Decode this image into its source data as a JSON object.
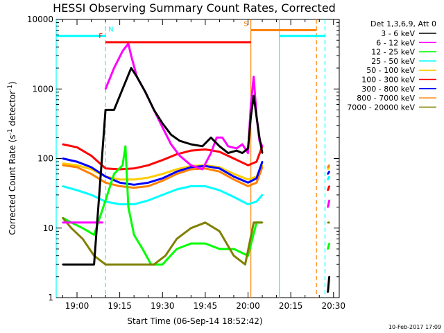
{
  "chart_data": {
    "type": "line",
    "title": "HESSI Observing Summary Count Rates, Corrected",
    "xlabel": "Start Time (06-Sep-14 18:52:42)",
    "ylabel": "Corrected Count Rate (s⁻¹ detector⁻¹)",
    "ylabel_base": "Corrected Count Rate (s",
    "ylabel_exp1": "-1",
    "ylabel_mid": " detector",
    "ylabel_exp2": "-1",
    "ylabel_end": ")",
    "y_scale": "log",
    "ylim": [
      1,
      10000
    ],
    "xlim": [
      "18:52:42",
      "20:32:00"
    ],
    "x_ticks": [
      {
        "t": "19:00",
        "label": "19:00"
      },
      {
        "t": "19:15",
        "label": "19:15"
      },
      {
        "t": "19:30",
        "label": "19:30"
      },
      {
        "t": "19:45",
        "label": "19:45"
      },
      {
        "t": "20:00",
        "label": "20:00"
      },
      {
        "t": "20:15",
        "label": "20:15"
      },
      {
        "t": "20:30",
        "label": "20:30"
      }
    ],
    "y_ticks": [
      {
        "v": 1,
        "label": "1"
      },
      {
        "v": 10,
        "label": "10"
      },
      {
        "v": 100,
        "label": "100"
      },
      {
        "v": 1000,
        "label": "1000"
      },
      {
        "v": 10000,
        "label": "10000"
      }
    ],
    "legend_header": "Det 1,3,6,9, Att 0",
    "legend_position": "right",
    "series": [
      {
        "name": "3 - 6 keV",
        "color": "#000000",
        "segments": [
          {
            "t": [
              "18:55",
              "18:58",
              "19:02",
              "19:06",
              "19:10",
              "19:13",
              "19:16",
              "19:19",
              "19:21",
              "19:24",
              "19:27",
              "19:30",
              "19:33",
              "19:36",
              "19:40",
              "19:44",
              "19:47",
              "19:50",
              "19:53",
              "19:56",
              "19:58",
              "20:00",
              "20:01",
              "20:02",
              "20:03",
              "20:04",
              "20:05"
            ],
            "v": [
              3,
              3,
              3,
              3,
              500,
              500,
              1000,
              2000,
              1500,
              900,
              500,
              320,
              220,
              180,
              160,
              150,
              200,
              150,
              120,
              130,
              120,
              140,
              400,
              800,
              400,
              200,
              120
            ]
          },
          {
            "t": [
              "20:28",
              "20:28.5"
            ],
            "v": [
              1.2,
              2
            ]
          }
        ]
      },
      {
        "name": "6 - 12 keV",
        "color": "#ff00ff",
        "segments": [
          {
            "t": [
              "18:55",
              "18:58",
              "19:02",
              "19:06",
              "19:09"
            ],
            "v": [
              12,
              12,
              12,
              12,
              12
            ]
          },
          {
            "t": [
              "19:10",
              "19:13",
              "19:16",
              "19:18",
              "19:19",
              "19:21",
              "19:24",
              "19:27",
              "19:30",
              "19:33",
              "19:36",
              "19:40",
              "19:44",
              "19:47",
              "19:49",
              "19:51",
              "19:53",
              "19:56",
              "19:58",
              "20:00",
              "20:01",
              "20:02",
              "20:03",
              "20:04",
              "20:05"
            ],
            "v": [
              1000,
              2000,
              3500,
              4500,
              3000,
              1500,
              900,
              500,
              280,
              160,
              110,
              80,
              70,
              120,
              200,
              200,
              150,
              140,
              160,
              120,
              600,
              1500,
              400,
              180,
              150
            ]
          },
          {
            "t": [
              "20:28",
              "20:28.5"
            ],
            "v": [
              20,
              25
            ]
          }
        ]
      },
      {
        "name": "12 - 25 keV",
        "color": "#00ff00",
        "segments": [
          {
            "t": [
              "18:55",
              "18:58",
              "19:02",
              "19:06",
              "19:10",
              "19:13",
              "19:16",
              "19:17",
              "19:18",
              "19:20",
              "19:23",
              "19:26",
              "19:30",
              "19:35",
              "19:40",
              "19:45",
              "19:50",
              "19:55",
              "20:00",
              "20:03",
              "20:05"
            ],
            "v": [
              14,
              12,
              10,
              8,
              25,
              60,
              80,
              150,
              20,
              8,
              5,
              3,
              3,
              5,
              6,
              6,
              5,
              5,
              4,
              12,
              12
            ]
          },
          {
            "t": [
              "20:28",
              "20:28.5"
            ],
            "v": [
              5,
              6
            ]
          }
        ]
      },
      {
        "name": "25 - 50 keV",
        "color": "#00ffff",
        "segments": [
          {
            "t": [
              "18:55",
              "19:00",
              "19:05",
              "19:10",
              "19:15",
              "19:20",
              "19:25",
              "19:30",
              "19:35",
              "19:40",
              "19:45",
              "19:50",
              "19:55",
              "20:00",
              "20:03",
              "20:05"
            ],
            "v": [
              40,
              35,
              30,
              24,
              22,
              22,
              25,
              30,
              36,
              40,
              40,
              35,
              28,
              22,
              24,
              30
            ]
          },
          {
            "t": [
              "20:28",
              "20:28.5"
            ],
            "v": [
              50,
              55
            ]
          }
        ]
      },
      {
        "name": "50 - 100 keV",
        "color": "#ffcc00",
        "segments": [
          {
            "t": [
              "18:55",
              "19:00",
              "19:05",
              "19:10",
              "19:15",
              "19:20",
              "19:25",
              "19:30",
              "19:35",
              "19:40",
              "19:45",
              "19:50",
              "19:55",
              "20:00",
              "20:03",
              "20:05"
            ],
            "v": [
              85,
              80,
              70,
              55,
              50,
              50,
              53,
              60,
              70,
              78,
              80,
              75,
              60,
              50,
              55,
              80
            ]
          },
          {
            "t": [
              "20:28",
              "20:28.5"
            ],
            "v": [
              70,
              75
            ]
          }
        ]
      },
      {
        "name": "100 - 300 keV",
        "color": "#ff0000",
        "segments": [
          {
            "t": [
              "18:55",
              "19:00",
              "19:05",
              "19:10",
              "19:15",
              "19:20",
              "19:25",
              "19:30",
              "19:35",
              "19:40",
              "19:45",
              "19:50",
              "19:55",
              "20:00",
              "20:03",
              "20:05"
            ],
            "v": [
              160,
              145,
              110,
              72,
              70,
              72,
              80,
              95,
              115,
              130,
              135,
              125,
              100,
              80,
              90,
              150
            ]
          },
          {
            "t": [
              "20:28",
              "20:28.5"
            ],
            "v": [
              35,
              40
            ]
          }
        ]
      },
      {
        "name": "300 - 800 keV",
        "color": "#0000ff",
        "segments": [
          {
            "t": [
              "18:55",
              "19:00",
              "19:05",
              "19:10",
              "19:15",
              "19:20",
              "19:25",
              "19:30",
              "19:35",
              "19:40",
              "19:45",
              "19:50",
              "19:55",
              "20:00",
              "20:03",
              "20:05"
            ],
            "v": [
              100,
              90,
              75,
              55,
              45,
              42,
              45,
              52,
              65,
              75,
              78,
              72,
              55,
              45,
              52,
              90
            ]
          },
          {
            "t": [
              "20:28",
              "20:28.5"
            ],
            "v": [
              60,
              65
            ]
          }
        ]
      },
      {
        "name": "800 - 7000 keV",
        "color": "#ff8000",
        "segments": [
          {
            "t": [
              "18:55",
              "19:00",
              "19:05",
              "19:10",
              "19:15",
              "19:20",
              "19:25",
              "19:30",
              "19:35",
              "19:40",
              "19:45",
              "19:50",
              "19:55",
              "20:00",
              "20:03",
              "20:05"
            ],
            "v": [
              80,
              75,
              60,
              45,
              40,
              38,
              40,
              48,
              60,
              70,
              72,
              65,
              50,
              40,
              45,
              75
            ]
          },
          {
            "t": [
              "20:28",
              "20:28.5"
            ],
            "v": [
              75,
              80
            ]
          }
        ]
      },
      {
        "name": "7000 - 20000 keV",
        "color": "#808000",
        "segments": [
          {
            "t": [
              "18:55",
              "18:58",
              "19:02",
              "19:06",
              "19:10",
              "19:14",
              "19:18",
              "19:22",
              "19:27",
              "19:31",
              "19:35",
              "19:40",
              "19:45",
              "19:50",
              "19:55",
              "19:59",
              "20:02",
              "20:05"
            ],
            "v": [
              14,
              10,
              7,
              4,
              3,
              3,
              3,
              3,
              3,
              4,
              7,
              10,
              12,
              9,
              4,
              3,
              12,
              12
            ]
          },
          {
            "t": [
              "20:28",
              "20:28.5"
            ],
            "v": [
              12,
              12
            ]
          }
        ]
      }
    ],
    "attenuator_bars": [
      {
        "label": "",
        "t0": "18:52:42",
        "t1": "19:10",
        "v": 5800,
        "color": "#00ffff"
      },
      {
        "label": "N",
        "t0": "19:10",
        "t1": "19:10",
        "v": 5800,
        "color": "#00ffff"
      },
      {
        "label": "F",
        "t0": "19:10",
        "t1": "20:01",
        "v": 4700,
        "color": "#ff0000"
      },
      {
        "label": "S",
        "t0": "20:01",
        "t1": "20:24",
        "v": 7000,
        "color": "#ff8000"
      },
      {
        "label": "",
        "t0": "20:11",
        "t1": "20:27",
        "v": 5800,
        "color": "#00ffff"
      }
    ],
    "flag_lines": [
      {
        "t": "18:52:42",
        "color": "#00ffff",
        "style": "solid"
      },
      {
        "t": "19:10",
        "color": "#00ffff",
        "style": "dashed"
      },
      {
        "t": "20:01",
        "color": "#ff8000",
        "style": "solid"
      },
      {
        "t": "20:11",
        "color": "#00ffff",
        "style": "solid"
      },
      {
        "t": "20:24",
        "color": "#ff8000",
        "style": "dashed"
      },
      {
        "t": "20:27",
        "color": "#00ffff",
        "style": "dashed"
      }
    ],
    "grid": false
  },
  "footer_date": "10-Feb-2017 17:09"
}
